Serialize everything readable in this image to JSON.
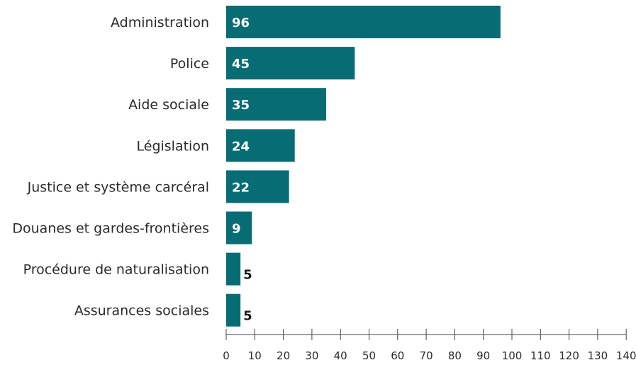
{
  "chart_data": {
    "type": "bar",
    "orientation": "horizontal",
    "title": "",
    "xlabel": "",
    "ylabel": "",
    "categories": [
      "Administration",
      "Police",
      "Aide sociale",
      "Législation",
      "Justice et système carcéral",
      "Douanes et gardes-frontières",
      "Procédure de naturalisation",
      "Assurances sociales"
    ],
    "values": [
      96,
      45,
      35,
      24,
      22,
      9,
      5,
      5
    ],
    "xlim": [
      0,
      140
    ],
    "xticks": [
      0,
      10,
      20,
      30,
      40,
      50,
      60,
      70,
      80,
      90,
      100,
      110,
      120,
      130,
      140
    ],
    "grid": false,
    "legend": "none",
    "colors": {
      "bar": "#086c75",
      "label_inside": "#ffffff",
      "label_outside": "#1a1a1a",
      "axis": "#444444"
    }
  }
}
